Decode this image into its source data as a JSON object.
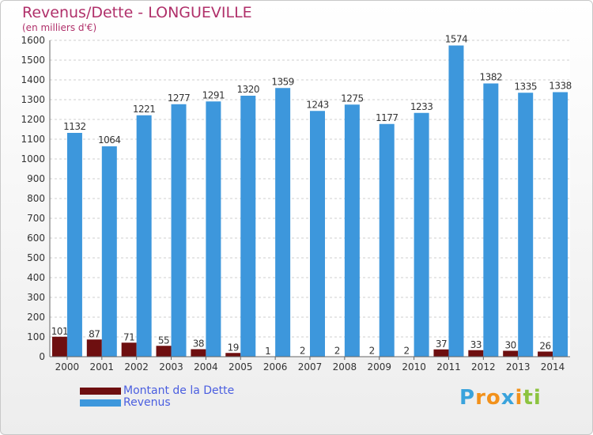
{
  "title": "Revenus/Dette - LONGUEVILLE",
  "subtitle": "(en milliers d'€)",
  "brand": {
    "letters": [
      "P",
      "r",
      "o",
      "x",
      "i",
      "t",
      "i"
    ],
    "colors": [
      "#3aa3dc",
      "#f2911b",
      "#f2911b",
      "#3aa3dc",
      "#f2911b",
      "#8cc33f",
      "#8cc33f"
    ]
  },
  "colors": {
    "dette": "#6e0f10",
    "revenus": "#3d97dc",
    "title": "#b0306a",
    "legend_text": "#4a5ee0"
  },
  "chart_data": {
    "type": "bar",
    "categories": [
      "2000",
      "2001",
      "2002",
      "2003",
      "2004",
      "2005",
      "2006",
      "2007",
      "2008",
      "2009",
      "2010",
      "2011",
      "2012",
      "2013",
      "2014"
    ],
    "series": [
      {
        "name": "Montant de la Dette",
        "values": [
          101,
          87,
          71,
          55,
          38,
          19,
          1,
          2,
          2,
          2,
          2,
          37,
          33,
          30,
          26
        ]
      },
      {
        "name": "Revenus",
        "values": [
          1132,
          1064,
          1221,
          1277,
          1291,
          1320,
          1359,
          1243,
          1275,
          1177,
          1233,
          1574,
          1382,
          1335,
          1338
        ]
      }
    ],
    "y_ticks": [
      0,
      100,
      200,
      300,
      400,
      500,
      600,
      700,
      800,
      900,
      1000,
      1100,
      1200,
      1300,
      1400,
      1500,
      1600
    ],
    "ylim": [
      0,
      1600
    ],
    "grid": true,
    "legend_position": "bottom-left"
  }
}
